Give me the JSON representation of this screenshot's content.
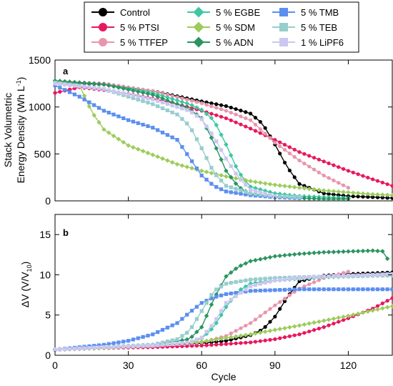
{
  "legend": {
    "columns": 3,
    "entries": [
      {
        "name": "Control",
        "color": "#000000",
        "marker": "circle"
      },
      {
        "name": "5 % PTSI",
        "color": "#e8185d",
        "marker": "circle"
      },
      {
        "name": "5 % TTFEP",
        "color": "#e796ab",
        "marker": "circle"
      },
      {
        "name": "5 % EGBE",
        "color": "#3ec7a3",
        "marker": "diamond"
      },
      {
        "name": "5 % SDM",
        "color": "#9ccc5c",
        "marker": "diamond"
      },
      {
        "name": "5 % ADN",
        "color": "#2b9461",
        "marker": "diamond"
      },
      {
        "name": "5 % TMB",
        "color": "#5b8ff0",
        "marker": "square"
      },
      {
        "name": "5 % TEB",
        "color": "#98cdcd",
        "marker": "square"
      },
      {
        "name": "1 % LiPF6",
        "color": "#cbc7f0",
        "marker": "square"
      }
    ]
  },
  "chart_data": [
    {
      "type": "line",
      "panel_label": "a",
      "xlabel": "",
      "ylabel": "Stack Volumetric",
      "ylabel2": "Energy Density (Wh L",
      "ylabel_sup": "-1",
      "ylabel_end": ")",
      "xlim": [
        0,
        138
      ],
      "ylim": [
        0,
        1500
      ],
      "xticks": [
        0,
        30,
        60,
        90,
        120
      ],
      "yticks": [
        0,
        500,
        1000,
        1500
      ],
      "show_xtick_labels": false,
      "grid": false,
      "series": [
        {
          "name": "Control",
          "x": [
            0,
            20,
            40,
            60,
            70,
            80,
            85,
            90,
            95,
            100,
            110,
            120,
            130,
            138
          ],
          "y": [
            1270,
            1240,
            1170,
            1060,
            1010,
            930,
            820,
            600,
            360,
            180,
            80,
            50,
            40,
            30
          ]
        },
        {
          "name": "5 % PTSI",
          "x": [
            0,
            5,
            10,
            20,
            30,
            40,
            50,
            60,
            70,
            80,
            90,
            100,
            110,
            120,
            130,
            138
          ],
          "y": [
            1150,
            1180,
            1210,
            1180,
            1140,
            1090,
            1030,
            960,
            880,
            770,
            650,
            520,
            420,
            320,
            230,
            160
          ]
        },
        {
          "name": "5 % TTFEP",
          "x": [
            0,
            20,
            40,
            60,
            70,
            80,
            90,
            100,
            110,
            120
          ],
          "y": [
            1270,
            1250,
            1170,
            1040,
            960,
            860,
            620,
            430,
            270,
            140
          ]
        },
        {
          "name": "5 % EGBE",
          "x": [
            0,
            20,
            40,
            55,
            60,
            65,
            70,
            75,
            80,
            90,
            100,
            110,
            120
          ],
          "y": [
            1280,
            1240,
            1150,
            1030,
            970,
            860,
            600,
            310,
            150,
            80,
            50,
            40,
            30
          ]
        },
        {
          "name": "5 % SDM",
          "x": [
            0,
            10,
            15,
            20,
            30,
            40,
            50,
            60,
            70,
            80,
            90,
            100,
            110,
            120,
            130,
            138
          ],
          "y": [
            1270,
            1230,
            950,
            760,
            590,
            490,
            390,
            320,
            260,
            210,
            170,
            140,
            110,
            90,
            70,
            60
          ]
        },
        {
          "name": "5 % ADN",
          "x": [
            0,
            20,
            40,
            55,
            60,
            65,
            70,
            75,
            80,
            90,
            100,
            110,
            120
          ],
          "y": [
            1280,
            1240,
            1130,
            980,
            880,
            620,
            320,
            150,
            70,
            40,
            30,
            20,
            20
          ]
        },
        {
          "name": "5 % TMB",
          "x": [
            0,
            10,
            20,
            30,
            40,
            50,
            55,
            60,
            65,
            70,
            80,
            90,
            100
          ],
          "y": [
            1230,
            1110,
            960,
            860,
            780,
            650,
            460,
            270,
            160,
            100,
            60,
            40,
            30
          ]
        },
        {
          "name": "5 % TEB",
          "x": [
            0,
            20,
            40,
            50,
            55,
            60,
            65,
            70,
            80,
            90,
            100
          ],
          "y": [
            1260,
            1190,
            1030,
            920,
            800,
            560,
            300,
            160,
            80,
            50,
            40
          ]
        },
        {
          "name": "1 % LiPF6",
          "x": [
            0,
            20,
            40,
            55,
            60,
            65,
            70,
            75,
            80,
            90
          ],
          "y": [
            1250,
            1190,
            1080,
            960,
            870,
            680,
            450,
            250,
            120,
            50
          ]
        }
      ]
    },
    {
      "type": "line",
      "panel_label": "b",
      "xlabel": "Cycle",
      "ylabel": "ΔV (V/V",
      "ylabel_sub": "10",
      "ylabel_end": ")",
      "xlim": [
        0,
        138
      ],
      "ylim": [
        0,
        17.5
      ],
      "xticks": [
        0,
        30,
        60,
        90,
        120
      ],
      "yticks": [
        0,
        5,
        10,
        15
      ],
      "show_xtick_labels": true,
      "grid": false,
      "series": [
        {
          "name": "Control",
          "x": [
            0,
            20,
            40,
            60,
            70,
            80,
            85,
            90,
            95,
            100,
            110,
            120,
            130,
            138
          ],
          "y": [
            0.7,
            1.0,
            1.2,
            1.5,
            1.8,
            2.5,
            3.2,
            4.8,
            7.2,
            9.2,
            9.9,
            10.1,
            10.2,
            10.3
          ]
        },
        {
          "name": "5 % PTSI",
          "x": [
            0,
            20,
            40,
            60,
            80,
            90,
            100,
            110,
            120,
            130,
            138
          ],
          "y": [
            0.7,
            0.9,
            1.0,
            1.2,
            1.6,
            2.0,
            2.6,
            3.5,
            4.6,
            5.8,
            7.1
          ]
        },
        {
          "name": "5 % TTFEP",
          "x": [
            0,
            20,
            40,
            60,
            70,
            80,
            90,
            100,
            110,
            120
          ],
          "y": [
            0.7,
            1.0,
            1.2,
            1.6,
            2.4,
            4.0,
            6.2,
            8.3,
            9.6,
            10.4
          ]
        },
        {
          "name": "5 % EGBE",
          "x": [
            0,
            20,
            40,
            55,
            60,
            65,
            70,
            75,
            80,
            90,
            100,
            110,
            120,
            130,
            138
          ],
          "y": [
            0.7,
            1.0,
            1.2,
            1.6,
            2.1,
            3.5,
            6.0,
            8.0,
            8.9,
            9.3,
            9.5,
            9.7,
            9.8,
            9.9,
            10.0
          ]
        },
        {
          "name": "5 % SDM",
          "x": [
            0,
            20,
            40,
            60,
            80,
            100,
            120,
            138
          ],
          "y": [
            0.7,
            0.9,
            1.2,
            1.7,
            2.6,
            3.7,
            4.9,
            6.1
          ]
        },
        {
          "name": "5 % ADN",
          "x": [
            0,
            20,
            40,
            55,
            60,
            65,
            70,
            75,
            80,
            90,
            100,
            110,
            120,
            130,
            135,
            136
          ],
          "y": [
            0.7,
            1.0,
            1.3,
            2.0,
            3.5,
            7.0,
            9.8,
            11.0,
            11.7,
            12.3,
            12.6,
            12.8,
            12.9,
            13.0,
            12.9,
            12.0
          ]
        },
        {
          "name": "5 % TMB",
          "x": [
            0,
            10,
            20,
            30,
            40,
            50,
            55,
            60,
            65,
            70,
            80,
            90,
            100,
            110,
            120,
            130,
            138
          ],
          "y": [
            0.7,
            1.0,
            1.3,
            1.8,
            2.6,
            4.0,
            5.3,
            6.5,
            7.2,
            7.6,
            8.0,
            8.1,
            8.2,
            8.2,
            8.2,
            8.2,
            8.2
          ]
        },
        {
          "name": "5 % TEB",
          "x": [
            0,
            20,
            40,
            50,
            55,
            60,
            65,
            70,
            80,
            90,
            100,
            110,
            120,
            130,
            138
          ],
          "y": [
            0.7,
            1.0,
            1.3,
            2.0,
            3.0,
            5.5,
            8.0,
            8.9,
            9.4,
            9.6,
            9.7,
            9.8,
            9.8,
            9.9,
            9.9
          ]
        },
        {
          "name": "1 % LiPF6",
          "x": [
            0,
            20,
            40,
            55,
            60,
            65,
            70,
            80,
            90,
            100,
            110,
            120,
            130,
            138
          ],
          "y": [
            0.7,
            1.0,
            1.2,
            1.6,
            2.2,
            4.0,
            6.5,
            8.6,
            9.3,
            9.6,
            9.8,
            9.9,
            10.0,
            10.1
          ]
        }
      ]
    }
  ]
}
